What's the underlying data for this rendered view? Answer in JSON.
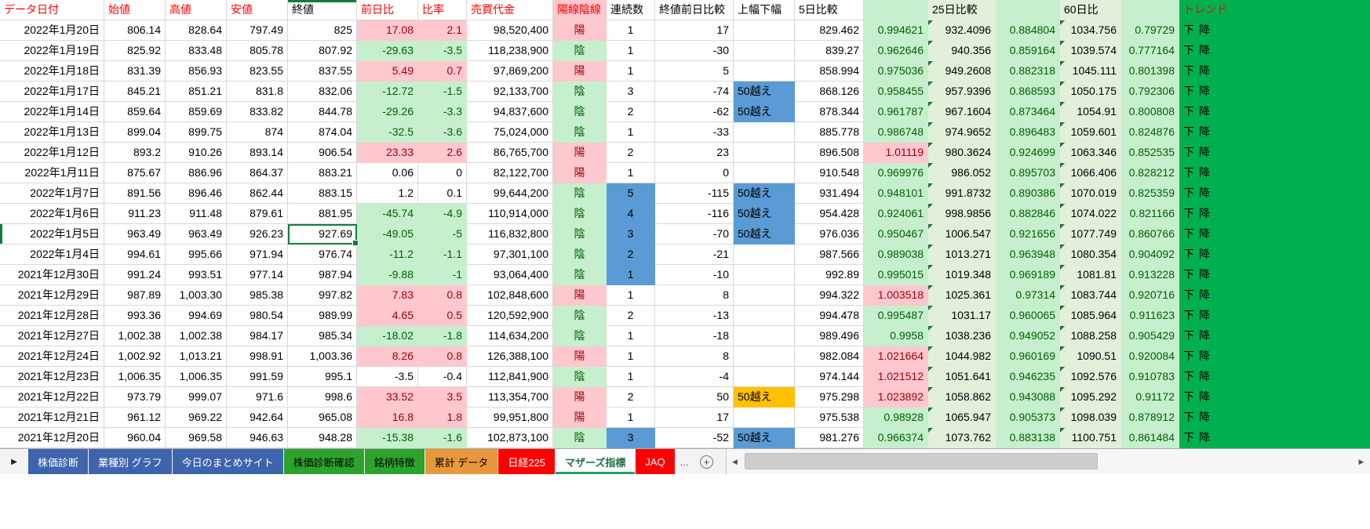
{
  "table": {
    "headers": [
      {
        "label": "データ日付",
        "style": "red"
      },
      {
        "label": "始値",
        "style": "red"
      },
      {
        "label": "高値",
        "style": "red"
      },
      {
        "label": "安値",
        "style": "red"
      },
      {
        "label": "終値",
        "style": "selcol"
      },
      {
        "label": "前日比",
        "style": "red"
      },
      {
        "label": "比率",
        "style": "red"
      },
      {
        "label": "売買代金",
        "style": "red"
      },
      {
        "label": "陽線陰線",
        "style": "red pink"
      },
      {
        "label": "連続数",
        "style": ""
      },
      {
        "label": "終値前日比較",
        "style": ""
      },
      {
        "label": "上幅下幅",
        "style": ""
      },
      {
        "label": "5日比較",
        "style": ""
      },
      {
        "label": "",
        "style": "band"
      },
      {
        "label": "25日比較",
        "style": "light"
      },
      {
        "label": "",
        "style": "band"
      },
      {
        "label": "60日比",
        "style": "light"
      },
      {
        "label": "",
        "style": "band"
      },
      {
        "label": "トレンド",
        "style": "red trend"
      }
    ],
    "rows": [
      [
        "2022年1月20日",
        "806.14",
        "828.64",
        "797.49",
        "825",
        "17.08",
        "2.1",
        "98,520,400",
        "陽",
        "1",
        "17",
        "",
        "829.462",
        "0.994621",
        "932.4096",
        "0.884804",
        "1034.756",
        "0.79729",
        "下降"
      ],
      [
        "2022年1月19日",
        "825.92",
        "833.48",
        "805.78",
        "807.92",
        "-29.63",
        "-3.5",
        "118,238,900",
        "陰",
        "1",
        "-30",
        "",
        "839.27",
        "0.962646",
        "940.356",
        "0.859164",
        "1039.574",
        "0.777164",
        "下降"
      ],
      [
        "2022年1月18日",
        "831.39",
        "856.93",
        "823.55",
        "837.55",
        "5.49",
        "0.7",
        "97,869,200",
        "陽",
        "1",
        "5",
        "",
        "858.994",
        "0.975036",
        "949.2608",
        "0.882318",
        "1045.111",
        "0.801398",
        "下降"
      ],
      [
        "2022年1月17日",
        "845.21",
        "851.21",
        "831.8",
        "832.06",
        "-12.72",
        "-1.5",
        "92,133,700",
        "陰",
        "3",
        "-74",
        "50越え",
        "868.126",
        "0.958455",
        "957.9396",
        "0.868593",
        "1050.175",
        "0.792306",
        "下降"
      ],
      [
        "2022年1月14日",
        "859.64",
        "859.69",
        "833.82",
        "844.78",
        "-29.26",
        "-3.3",
        "94,837,600",
        "陰",
        "2",
        "-62",
        "50越え",
        "878.344",
        "0.961787",
        "967.1604",
        "0.873464",
        "1054.91",
        "0.800808",
        "下降"
      ],
      [
        "2022年1月13日",
        "899.04",
        "899.75",
        "874",
        "874.04",
        "-32.5",
        "-3.6",
        "75,024,000",
        "陰",
        "1",
        "-33",
        "",
        "885.778",
        "0.986748",
        "974.9652",
        "0.896483",
        "1059.601",
        "0.824876",
        "下降"
      ],
      [
        "2022年1月12日",
        "893.2",
        "910.26",
        "893.14",
        "906.54",
        "23.33",
        "2.6",
        "86,765,700",
        "陽",
        "2",
        "23",
        "",
        "896.508",
        "1.01119",
        "980.3624",
        "0.924699",
        "1063.346",
        "0.852535",
        "下降"
      ],
      [
        "2022年1月11日",
        "875.67",
        "886.96",
        "864.37",
        "883.21",
        "0.06",
        "0",
        "82,122,700",
        "陽",
        "1",
        "0",
        "",
        "910.548",
        "0.969976",
        "986.052",
        "0.895703",
        "1066.406",
        "0.828212",
        "下降"
      ],
      [
        "2022年1月7日",
        "891.56",
        "896.46",
        "862.44",
        "883.15",
        "1.2",
        "0.1",
        "99,644,200",
        "陰",
        "5",
        "-115",
        "50越え",
        "931.494",
        "0.948101",
        "991.8732",
        "0.890386",
        "1070.019",
        "0.825359",
        "下降"
      ],
      [
        "2022年1月6日",
        "911.23",
        "911.48",
        "879.61",
        "881.95",
        "-45.74",
        "-4.9",
        "110,914,000",
        "陰",
        "4",
        "-116",
        "50越え",
        "954.428",
        "0.924061",
        "998.9856",
        "0.882846",
        "1074.022",
        "0.821166",
        "下降"
      ],
      [
        "2022年1月5日",
        "963.49",
        "963.49",
        "926.23",
        "927.69",
        "-49.05",
        "-5",
        "116,832,800",
        "陰",
        "3",
        "-70",
        "50越え",
        "976.036",
        "0.950467",
        "1006.547",
        "0.921656",
        "1077.749",
        "0.860766",
        "下降"
      ],
      [
        "2022年1月4日",
        "994.61",
        "995.66",
        "971.94",
        "976.74",
        "-11.2",
        "-1.1",
        "97,301,100",
        "陰",
        "2",
        "-21",
        "",
        "987.566",
        "0.989038",
        "1013.271",
        "0.963948",
        "1080.354",
        "0.904092",
        "下降"
      ],
      [
        "2021年12月30日",
        "991.24",
        "993.51",
        "977.14",
        "987.94",
        "-9.88",
        "-1",
        "93,064,400",
        "陰",
        "1",
        "-10",
        "",
        "992.89",
        "0.995015",
        "1019.348",
        "0.969189",
        "1081.81",
        "0.913228",
        "下降"
      ],
      [
        "2021年12月29日",
        "987.89",
        "1,003.30",
        "985.38",
        "997.82",
        "7.83",
        "0.8",
        "102,848,600",
        "陽",
        "1",
        "8",
        "",
        "994.322",
        "1.003518",
        "1025.361",
        "0.97314",
        "1083.744",
        "0.920716",
        "下降"
      ],
      [
        "2021年12月28日",
        "993.36",
        "994.69",
        "980.54",
        "989.99",
        "4.65",
        "0.5",
        "120,592,900",
        "陰",
        "2",
        "-13",
        "",
        "994.478",
        "0.995487",
        "1031.17",
        "0.960065",
        "1085.964",
        "0.911623",
        "下降"
      ],
      [
        "2021年12月27日",
        "1,002.38",
        "1,002.38",
        "984.17",
        "985.34",
        "-18.02",
        "-1.8",
        "114,634,200",
        "陰",
        "1",
        "-18",
        "",
        "989.496",
        "0.9958",
        "1038.236",
        "0.949052",
        "1088.258",
        "0.905429",
        "下降"
      ],
      [
        "2021年12月24日",
        "1,002.92",
        "1,013.21",
        "998.91",
        "1,003.36",
        "8.26",
        "0.8",
        "126,388,100",
        "陽",
        "1",
        "8",
        "",
        "982.084",
        "1.021664",
        "1044.982",
        "0.960169",
        "1090.51",
        "0.920084",
        "下降"
      ],
      [
        "2021年12月23日",
        "1,006.35",
        "1,006.35",
        "991.59",
        "995.1",
        "-3.5",
        "-0.4",
        "112,841,900",
        "陰",
        "1",
        "-4",
        "",
        "974.144",
        "1.021512",
        "1051.641",
        "0.946235",
        "1092.576",
        "0.910783",
        "下降"
      ],
      [
        "2021年12月22日",
        "973.79",
        "999.07",
        "971.6",
        "998.6",
        "33.52",
        "3.5",
        "113,354,700",
        "陽",
        "2",
        "50",
        "50越え",
        "975.298",
        "1.023892",
        "1058.862",
        "0.943088",
        "1095.292",
        "0.91172",
        "下降"
      ],
      [
        "2021年12月21日",
        "961.12",
        "969.22",
        "942.64",
        "965.08",
        "16.8",
        "1.8",
        "99,951,800",
        "陽",
        "1",
        "17",
        "",
        "975.538",
        "0.98928",
        "1065.947",
        "0.905373",
        "1098.039",
        "0.878912",
        "下降"
      ],
      [
        "2021年12月20日",
        "960.04",
        "969.58",
        "946.63",
        "948.28",
        "-15.38",
        "-1.6",
        "102,873,100",
        "陰",
        "3",
        "-52",
        "50越え",
        "981.276",
        "0.966374",
        "1073.762",
        "0.883138",
        "1100.751",
        "0.861484",
        "下降"
      ]
    ],
    "consec_highlight_rows": [
      8,
      9,
      10,
      11,
      12,
      20
    ],
    "range_highlight": {
      "3": "blue",
      "4": "blue",
      "8": "blue",
      "9": "blue",
      "10": "blue",
      "18": "orange",
      "20": "blue"
    },
    "selection": {
      "row": 10,
      "col": 4,
      "value": "927.69"
    }
  },
  "colors": {
    "positive_bg": "#FFC7CE",
    "positive_text": "#9C0006",
    "negative_bg": "#C6EFCE",
    "negative_text": "#006100",
    "highlight_blue": "#5B9BD5",
    "highlight_orange": "#FFC000",
    "light_green": "#E2EFDA",
    "trend_green": "#00B050",
    "header_red": "#FF0000",
    "selection_green": "#107C41"
  },
  "sheet_bar": {
    "nav_icon": "▶",
    "tabs": [
      {
        "label": "株価診断",
        "color": "blue"
      },
      {
        "label": "業種別 グラフ",
        "color": "blue"
      },
      {
        "label": "今日のまとめサイト",
        "color": "blue"
      },
      {
        "label": "株価診断確認",
        "color": "green"
      },
      {
        "label": "銘柄特徴",
        "color": "green"
      },
      {
        "label": "累計 データ",
        "color": "orange"
      },
      {
        "label": "日経225",
        "color": "red"
      },
      {
        "label": "マザーズ指標",
        "color": "active",
        "active": true
      },
      {
        "label": "JAQ",
        "color": "red"
      },
      {
        "label": "...",
        "color": "more"
      }
    ],
    "add_sheet_icon": "+",
    "scroll_left_icon": "◀",
    "scroll_right_icon": "▶"
  }
}
